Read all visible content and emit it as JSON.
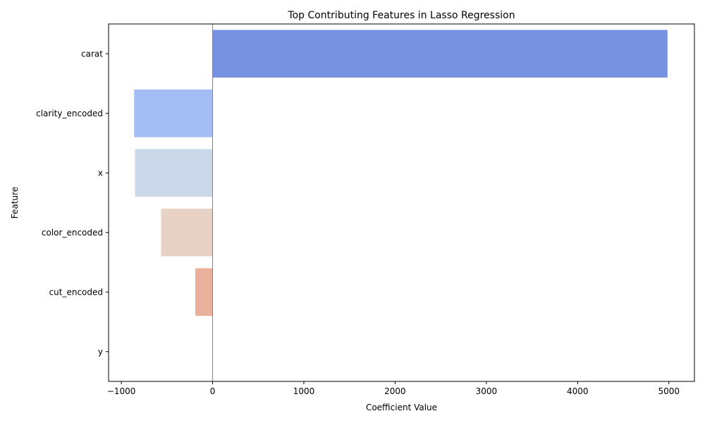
{
  "chart_data": {
    "type": "bar",
    "orientation": "horizontal",
    "title": "Top Contributing Features in Lasso Regression",
    "xlabel": "Coefficient Value",
    "ylabel": "Feature",
    "categories": [
      "carat",
      "clarity_encoded",
      "x",
      "color_encoded",
      "cut_encoded",
      "y"
    ],
    "values": [
      4985,
      -860,
      -850,
      -565,
      -190,
      0
    ],
    "colors": [
      "#7792e0",
      "#a3bdf5",
      "#cbd8ea",
      "#e8d2c6",
      "#eab099",
      "#e08060"
    ],
    "xlim": [
      -1140,
      5280
    ],
    "xticks": [
      -1000,
      0,
      1000,
      2000,
      3000,
      4000,
      5000
    ],
    "xtick_labels": [
      "−1000",
      "0",
      "1000",
      "2000",
      "3000",
      "4000",
      "5000"
    ],
    "zero_line": true,
    "grid": false,
    "legend": "none"
  }
}
